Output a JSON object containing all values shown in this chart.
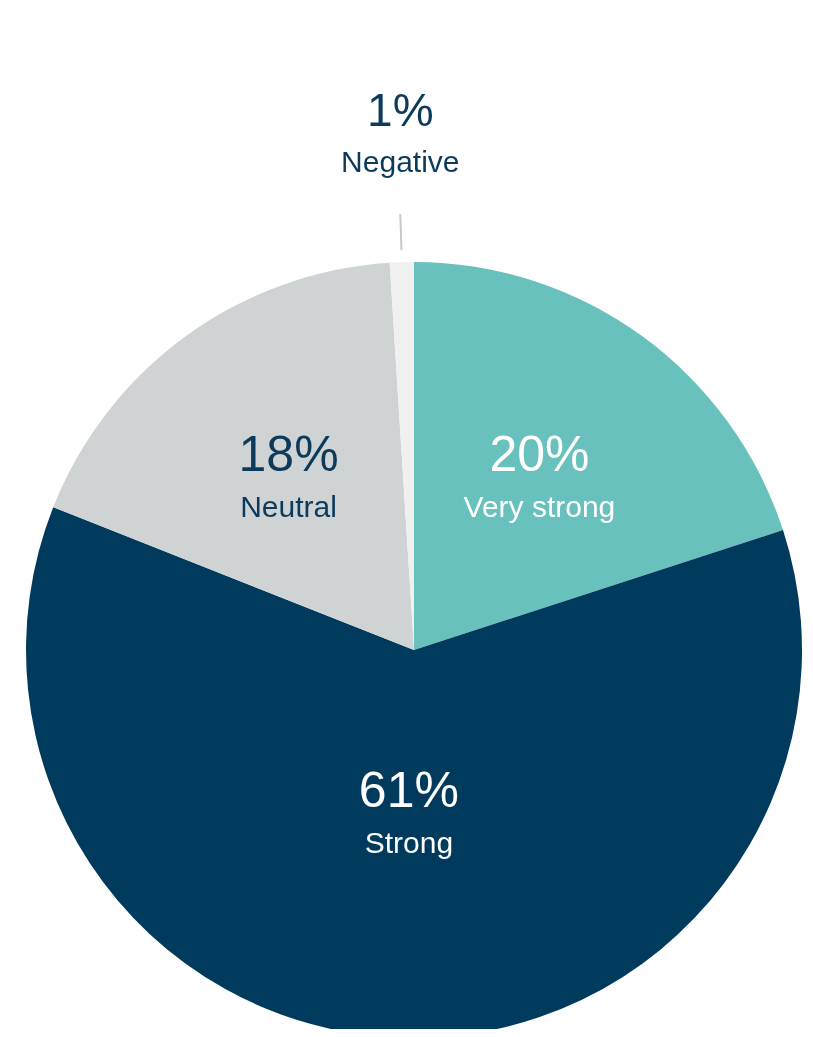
{
  "chart_data": {
    "type": "pie",
    "categories": [
      "Very strong",
      "Strong",
      "Neutral",
      "Negative"
    ],
    "values": [
      20,
      61,
      18,
      1
    ],
    "value_labels": [
      "20%",
      "61%",
      "18%",
      "1%"
    ],
    "colors": [
      "#68c1bd",
      "#003a5d",
      "#d0d3d4",
      "#f0f0f0"
    ]
  }
}
